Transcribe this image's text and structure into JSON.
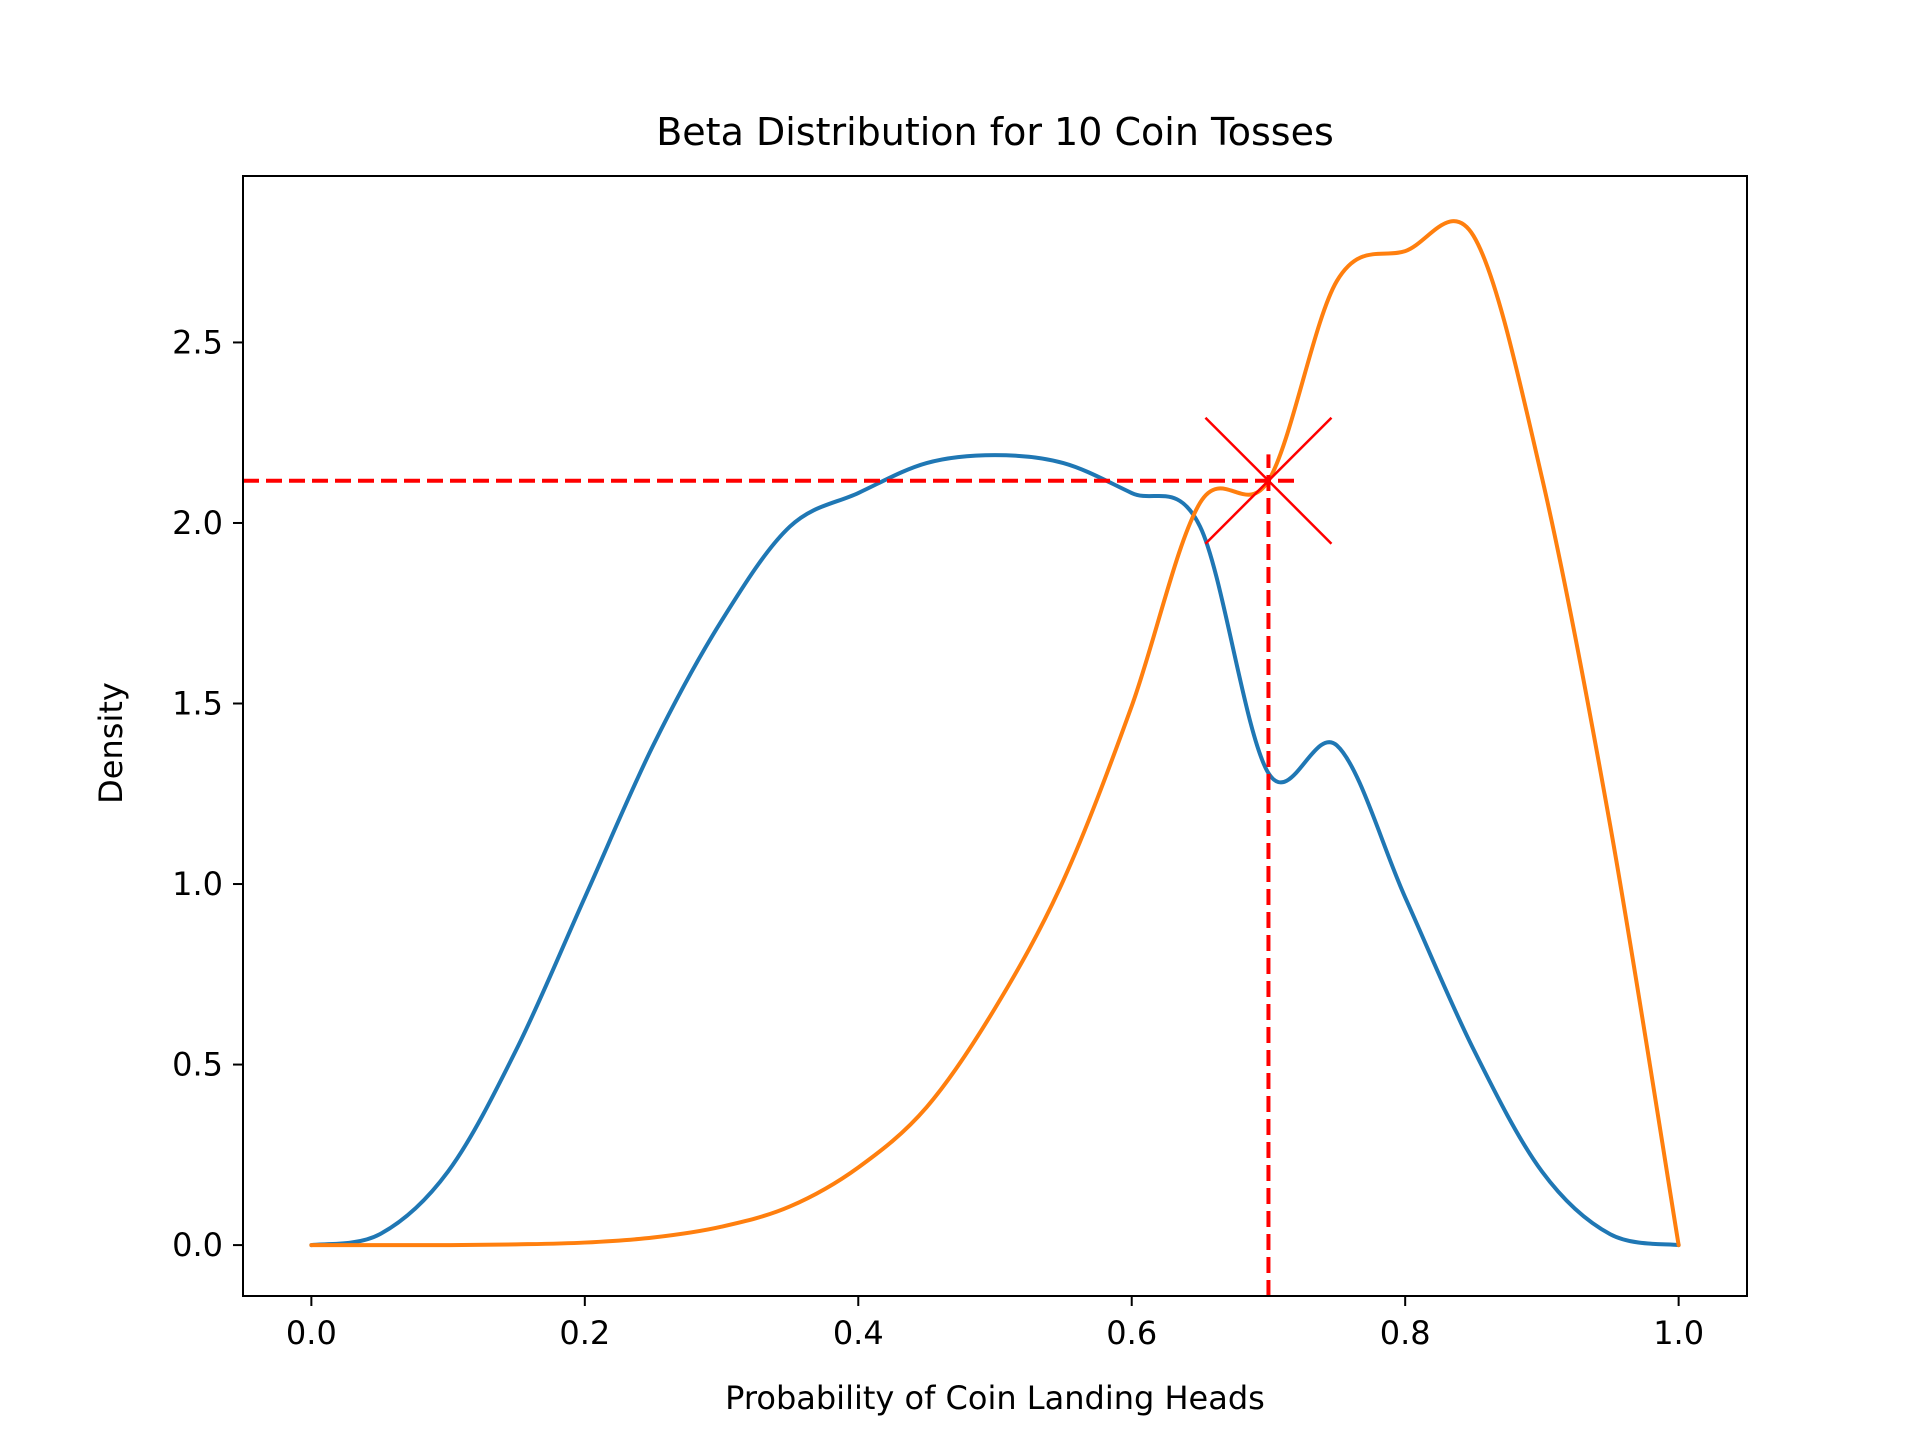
{
  "chart_data": {
    "type": "line",
    "title": "Beta Distribution for 10 Coin Tosses",
    "xlabel": "Probability of Coin Landing Heads",
    "ylabel": "Density",
    "xlim": [
      -0.05,
      1.05
    ],
    "ylim": [
      -0.141,
      2.961
    ],
    "xticks": [
      0.0,
      0.2,
      0.4,
      0.6,
      0.8,
      1.0
    ],
    "xtick_labels": [
      "0.0",
      "0.2",
      "0.4",
      "0.6",
      "0.8",
      "1.0"
    ],
    "yticks": [
      0.0,
      0.5,
      1.0,
      1.5,
      2.0,
      2.5
    ],
    "ytick_labels": [
      "0.0",
      "0.5",
      "1.0",
      "1.5",
      "2.0",
      "2.5"
    ],
    "grid": false,
    "legend": "none",
    "series": [
      {
        "color": "#1f77b4",
        "distribution": "Beta(4, 4)",
        "x": [
          0.0,
          0.05,
          0.1,
          0.15,
          0.2,
          0.25,
          0.3,
          0.35,
          0.4,
          0.45,
          0.5,
          0.55,
          0.6,
          0.65,
          0.7,
          0.75,
          0.8,
          0.85,
          0.9,
          0.95,
          1.0
        ],
        "y": [
          0.0,
          0.03,
          0.204,
          0.542,
          0.963,
          1.384,
          1.729,
          1.99,
          2.083,
          2.166,
          2.188,
          2.166,
          2.083,
          1.99,
          1.307,
          1.384,
          0.963,
          0.542,
          0.204,
          0.03,
          0.0
        ]
      },
      {
        "color": "#ff7f0e",
        "distribution": "Beta(6, 2)",
        "x": [
          0.0,
          0.05,
          0.1,
          0.15,
          0.2,
          0.25,
          0.3,
          0.35,
          0.4,
          0.45,
          0.5,
          0.55,
          0.6,
          0.65,
          0.7,
          0.75,
          0.8,
          0.85,
          0.9,
          0.95,
          1.0
        ],
        "y": [
          0.0,
          0.0,
          0.0,
          0.002,
          0.007,
          0.021,
          0.051,
          0.107,
          0.215,
          0.382,
          0.656,
          1.01,
          1.493,
          2.056,
          2.117,
          2.67,
          2.753,
          2.795,
          2.126,
          1.161,
          0.0
        ]
      }
    ],
    "annotations": [
      {
        "type": "hline",
        "y": 2.117,
        "x_from": -0.05,
        "x_to": 0.72,
        "style": "dashed",
        "color": "#ff0000"
      },
      {
        "type": "vline",
        "x": 0.7,
        "y_from": -0.141,
        "y_to": 2.19,
        "style": "dashed",
        "color": "#ff0000"
      },
      {
        "type": "marker",
        "marker": "x",
        "x": 0.7,
        "y": 2.117,
        "color": "#ff0000"
      }
    ]
  }
}
